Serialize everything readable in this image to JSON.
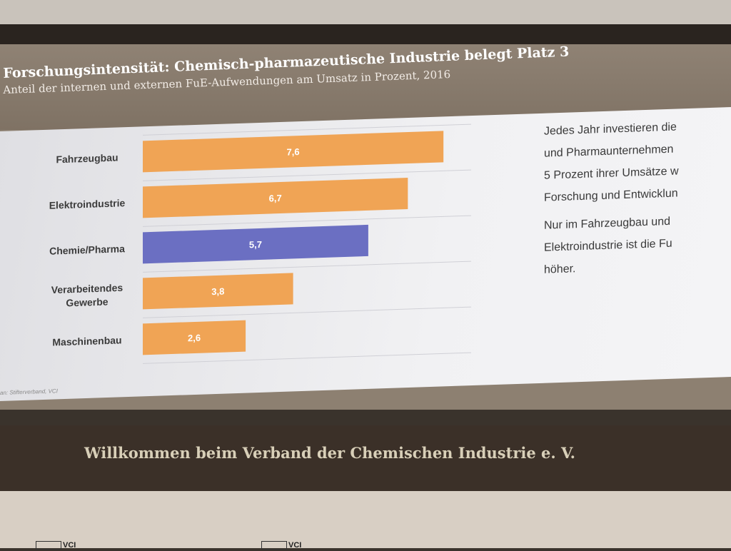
{
  "slide": {
    "title": "Forschungsintensität: Chemisch-pharmazeutische Industrie belegt Platz 3",
    "subtitle": "Anteil der internen und externen FuE-Aufwendungen am Umsatz in Prozent, 2016",
    "body_paragraphs": [
      [
        "Jedes Jahr investieren die",
        "und Pharmaunternehmen",
        "5 Prozent ihrer Umsätze w",
        "Forschung und Entwicklun"
      ],
      [
        "Nur im Fahrzeugbau und",
        "Elektroindustrie ist die Fu",
        "höher."
      ]
    ],
    "source": "an: Stifterverband, VCI"
  },
  "chart_data": {
    "type": "bar",
    "orientation": "horizontal",
    "categories": [
      "Fahrzeugbau",
      "Elektroindustrie",
      "Chemie/Pharma",
      "Verarbeitendes Gewerbe",
      "Maschinenbau"
    ],
    "category_lines": [
      [
        "Fahrzeugbau"
      ],
      [
        "Elektroindustrie"
      ],
      [
        "Chemie/Pharma"
      ],
      [
        "Verarbeitendes",
        "Gewerbe"
      ],
      [
        "Maschinenbau"
      ]
    ],
    "values": [
      7.6,
      6.7,
      5.7,
      3.8,
      2.6
    ],
    "value_labels": [
      "7,6",
      "6,7",
      "5,7",
      "3,8",
      "2,6"
    ],
    "highlight_category": "Chemie/Pharma",
    "xlim": [
      0,
      8.3
    ],
    "colors": {
      "default": "#f0a455",
      "highlight": "#6b6fc2",
      "label_text": "#ffffff",
      "category_text": "#3b3b3b",
      "grid": "#d0d0d6"
    }
  },
  "ticker": {
    "text": "Willkommen beim Verband der Chemischen Industrie e. V."
  },
  "logos": [
    "VCI",
    "VCI"
  ]
}
